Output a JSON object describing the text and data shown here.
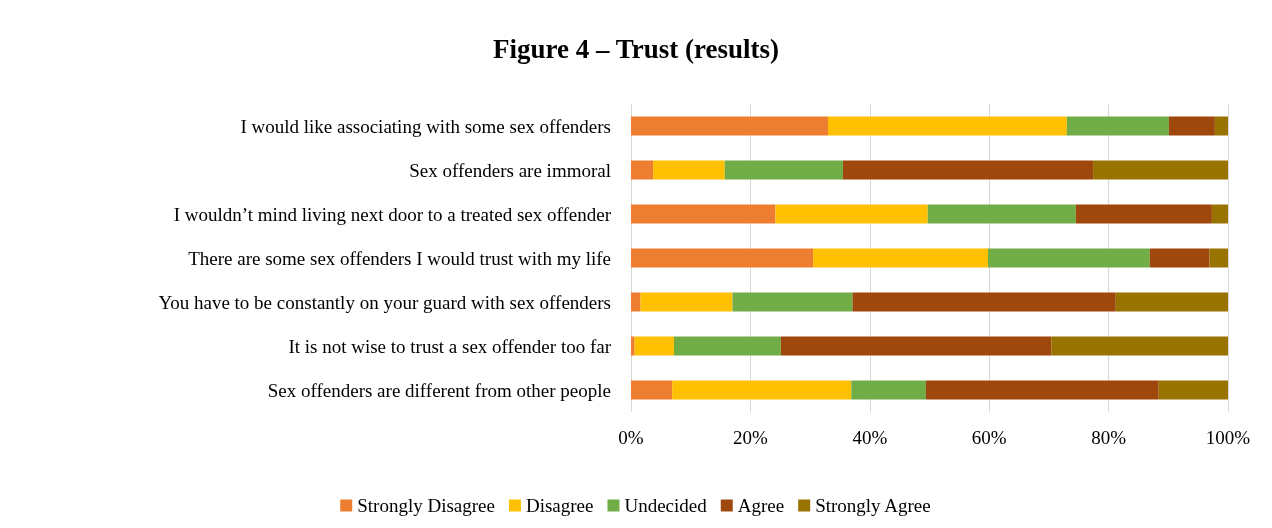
{
  "chart_data": {
    "type": "bar",
    "orientation": "horizontal",
    "stacked": true,
    "title": "Figure 4 – Trust (results)",
    "categories": [
      "I would like associating with some sex offenders",
      "Sex offenders are immoral",
      "I wouldn’t mind living next door to a treated sex offender",
      "There are some sex offenders I would trust with my life",
      "You have to be constantly on your guard with sex offenders",
      "It is not wise to trust a sex offender too far",
      "Sex offenders are different from other people"
    ],
    "series": [
      {
        "name": "Strongly Disagree",
        "color": "#ed7d31",
        "values": [
          33.0,
          3.7,
          24.2,
          30.5,
          1.6,
          0.6,
          6.9
        ]
      },
      {
        "name": "Disagree",
        "color": "#ffc000",
        "values": [
          40.0,
          12.0,
          25.5,
          29.3,
          15.4,
          6.6,
          30.0
        ]
      },
      {
        "name": "Undecided",
        "color": "#70ad47",
        "values": [
          17.1,
          19.8,
          24.8,
          27.1,
          20.1,
          17.9,
          12.5
        ]
      },
      {
        "name": "Agree",
        "color": "#9e480e",
        "values": [
          7.7,
          41.9,
          22.8,
          10.0,
          44.1,
          45.3,
          39.0
        ]
      },
      {
        "name": "Strongly Agree",
        "color": "#997300",
        "values": [
          2.2,
          22.6,
          2.7,
          3.1,
          18.8,
          29.6,
          11.6
        ]
      }
    ],
    "xlim": [
      0,
      100
    ],
    "xticks": [
      {
        "value": 0,
        "label": "0%"
      },
      {
        "value": 20,
        "label": "20%"
      },
      {
        "value": 40,
        "label": "40%"
      },
      {
        "value": 60,
        "label": "60%"
      },
      {
        "value": 80,
        "label": "80%"
      },
      {
        "value": 100,
        "label": "100%"
      }
    ],
    "grid": "x",
    "legend": "bottom"
  }
}
